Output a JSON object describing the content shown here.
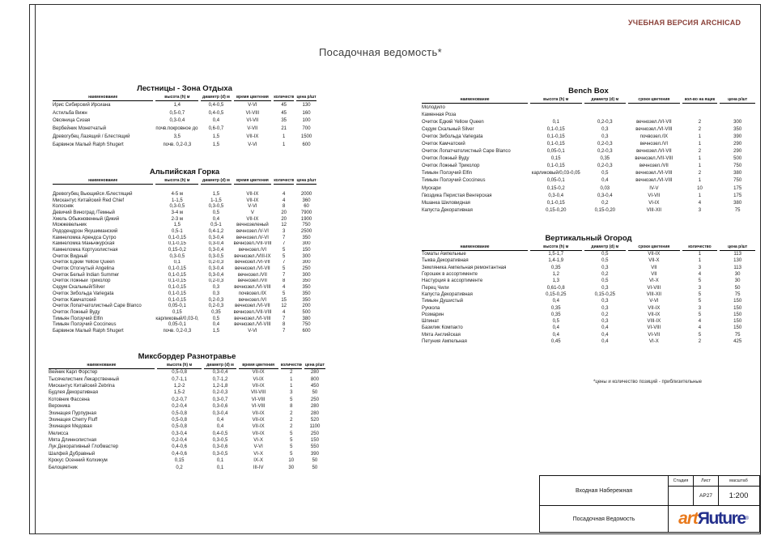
{
  "sheet": {
    "title": "Посадочная ведомость*",
    "watermark": "УЧЕБНАЯ ВЕРСИЯ ARCHICAD",
    "note": "*цены и количество позиций - приблизительные"
  },
  "tables": [
    {
      "id": "stairs",
      "title": "Лестницы - Зона Отдыха",
      "headers": [
        "наименование",
        "высота (h) м",
        "диаметр (d) м",
        "время цветения",
        "количество",
        "цена р/шт"
      ],
      "rows": [
        [
          "Ирис Сибирский Ирсиана",
          "1,4",
          "0,4-0,5",
          "V-VI",
          "45",
          "130"
        ],
        [
          "Астильба Вижн",
          "0,5-0,7",
          "0,4-0,5",
          "VI-VIII",
          "45",
          "160"
        ],
        [
          "Овсяница Сизая",
          "0,3-0,4",
          "0,4",
          "VI-VII",
          "35",
          "100"
        ],
        [
          "Вербейник Монетчатый",
          "почв.покровное до 1,2",
          "0,6-0,7",
          "V-VII",
          "21",
          "700"
        ],
        [
          "Древогубец Лазящий / Блестящий",
          "3,5",
          "1,5",
          "VII-IX",
          "1",
          "1500"
        ],
        [
          "Барвинок Малый Ralph Shugert",
          "почв. 0,2-0,3",
          "1,5",
          "V-VI",
          "1",
          "600"
        ]
      ]
    },
    {
      "id": "alpine",
      "title": "Альпийская Горка",
      "headers": [
        "наименование",
        "высота (h) м",
        "диаметр (d) м",
        "время цветения",
        "количество",
        "цена р/шт"
      ],
      "rows": [
        [
          "Древогубец Вьющийся /Блестящий",
          "4-5 м",
          "1,5",
          "VII-IX",
          "4",
          "2000"
        ],
        [
          "Мискантус Китайский Red Chief",
          "1-1,5",
          "1-1,5",
          "VII-IX",
          "4",
          "360"
        ],
        [
          "Колосняк",
          "0,3-0,5",
          "0,3-0,5",
          "V-VI",
          "8",
          "60"
        ],
        [
          "Девичий Виноград /Темный",
          "3-4 м",
          "0,5",
          "V",
          "20",
          "7900"
        ],
        [
          "Хмель Обыкновенный /Дикий",
          "2-3 м",
          "0,4",
          "VII-IX",
          "20",
          "1900"
        ],
        [
          "Можжевельник",
          "1,5",
          "0,5-1",
          "вечнозеленый",
          "12",
          "750"
        ],
        [
          "Рододендрон Якушиманский",
          "0,5-1",
          "0,4-1,2",
          "вечнозел./V-VI",
          "3",
          "2500"
        ],
        [
          "Камнеломка Арендса Сутро",
          "0,1-0,15",
          "0,3-0,4",
          "вечнозел./V-VI",
          "7",
          "350"
        ],
        [
          "Камнеломка Маньчжурская",
          "0,1-0,15",
          "0,3-0,4",
          "вечнозел./VII-VIII",
          "7",
          "300"
        ],
        [
          "Камнеломка Кортузолистная",
          "0,15-0,2",
          "0,3-0,4",
          "вечнозел./VI",
          "5",
          "150"
        ],
        [
          "Очиток Видный",
          "0,3-0,5",
          "0,3-0,5",
          "вечнозел./VIII-IX",
          "5",
          "300"
        ],
        [
          "Очиток Едкий Yellow Queen",
          "0,1",
          "0,2-0,3",
          "вечнозел./VI-VII",
          "7",
          "300"
        ],
        [
          "Очиток Отогнутый Angelina",
          "0,1-0,15",
          "0,3-0,4",
          "вечнозел./VI-VII",
          "5",
          "250"
        ],
        [
          "Очиток Белый Indian Summer",
          "0,1-0,15",
          "0,3-0,4",
          "вечнозел./VII",
          "7",
          "300"
        ],
        [
          "Очиток Ложный Триколор",
          "0,1-0,15",
          "0,2-0,3",
          "вечнозел./VII",
          "8",
          "350"
        ],
        [
          "Седум Скальный/Silver",
          "0,1-0,15",
          "0,3",
          "вечнозел./VI-VIII",
          "4",
          "350"
        ],
        [
          "Очиток Зибольда Variegata",
          "0,1-0,15",
          "0,3",
          "почвозел./IX",
          "5",
          "350"
        ],
        [
          "Очиток Камчатский",
          "0,1-0,15",
          "0,2-0,3",
          "вечнозел./VI",
          "15",
          "350"
        ],
        [
          "Очиток Лопатчатолистный Cape Blanco",
          "0,05-0,1",
          "0,2-0,3",
          "вечнозел./VI-VII",
          "12",
          "200"
        ],
        [
          "Очиток Ложный Вуду",
          "0,15",
          "0,35",
          "вечнозел./VII-VIII",
          "4",
          "500"
        ],
        [
          "Тимьян Ползучий Elfin",
          "карликовый/0,03-0,05",
          "0,5",
          "вечнозел./VI-VIII",
          "7",
          "380"
        ],
        [
          "Тимьян Ползучий Coccineus",
          "0,05-0,1",
          "0,4",
          "вечнозел./VI-VIII",
          "8",
          "750"
        ],
        [
          "Барвинок Малый Ralph Shugert",
          "почв. 0,2-0,3",
          "1,5",
          "V-VI",
          "7",
          "600"
        ]
      ]
    },
    {
      "id": "mixborder",
      "title": "Миксбордер Разнотравье",
      "headers": [
        "наименование",
        "высота (h) м",
        "диаметр (d) м",
        "время цветения",
        "количество",
        "цена р/шт"
      ],
      "rows": [
        [
          "Вейник Карл Форстер",
          "0,5-0,8",
          "0,3-0,4",
          "VII-IX",
          "2",
          "280"
        ],
        [
          "Тысячелистник Лекарственный",
          "0,7-1,1",
          "0,7-1,2",
          "VI-IX",
          "1",
          "800"
        ],
        [
          "Мискантус Китайский Zebrina",
          "1,2-2",
          "1,2-1,8",
          "VII-IX",
          "1",
          "450"
        ],
        [
          "Будлея Декоративная",
          "1,5-2",
          "0,2-0,3",
          "VII-VIII",
          "3",
          "50"
        ],
        [
          "Котовник Фассена",
          "0,2-0,7",
          "0,3-0,7",
          "VI-VIII",
          "5",
          "250"
        ],
        [
          "Вероника",
          "0,2-0,4",
          "0,3-0,6",
          "VI-VIII",
          "8",
          "280"
        ],
        [
          "Эхинацея Пурпурная",
          "0,5-0,8",
          "0,3-0,4",
          "VII-IX",
          "2",
          "280"
        ],
        [
          "Эхинацея Cherry Fluff",
          "0,5-0,8",
          "0,4",
          "VII-IX",
          "2",
          "520"
        ],
        [
          "Эхинацея Медовая",
          "0,5-0,8",
          "0,4",
          "VII-IX",
          "2",
          "1100"
        ],
        [
          "Мелисса",
          "0,3-0,4",
          "0,4-0,5",
          "VII-IX",
          "5",
          "250"
        ],
        [
          "Мята Длиннолистная",
          "0,2-0,4",
          "0,3-0,5",
          "VI-X",
          "5",
          "150"
        ],
        [
          "Лук Декоративный Глобмастер",
          "0,4-0,6",
          "0,3-0,6",
          "V-VI",
          "5",
          "550"
        ],
        [
          "Шалфей Дубравный",
          "0,4-0,6",
          "0,3-0,5",
          "VI-X",
          "5",
          "390"
        ],
        [
          "Крокус Осенний Колхикум",
          "0,15",
          "0,1",
          "IX-X",
          "10",
          "50"
        ],
        [
          "Белоцветник",
          "0,2",
          "0,1",
          "III-IV",
          "30",
          "50"
        ]
      ]
    },
    {
      "id": "benchbox",
      "title": "Bench Box",
      "headers": [
        "наименование",
        "высота (h) м",
        "диаметр (d) м",
        "сроки цветения",
        "кол-во на ящик",
        "цена р/шт"
      ],
      "rows": [
        [
          "Молодило",
          "",
          "",
          "",
          "",
          ""
        ],
        [
          "Каменная Роза",
          "",
          "",
          "",
          "",
          ""
        ],
        [
          "Очиток Едкий Yellow Queen",
          "0,1",
          "0,2-0,3",
          "вечнозел./VI-VII",
          "2",
          "300"
        ],
        [
          "Седум Скальный Silver",
          "0,1-0,15",
          "0,3",
          "вечнозел./VI-VIII",
          "2",
          "350"
        ],
        [
          "Очиток Зибольда Variegata",
          "0,1-0,15",
          "0,3",
          "почвозел./IX",
          "1",
          "390"
        ],
        [
          "Очиток Камчатский",
          "0,1-0,15",
          "0,2-0,3",
          "вечнозел./VI",
          "1",
          "290"
        ],
        [
          "Очиток Лопатчатолистный Cape Blanco",
          "0,05-0,1",
          "0,2-0,3",
          "вечнозел./VI-VII",
          "2",
          "290"
        ],
        [
          "Очиток Ложный Вуду",
          "0,15",
          "0,35",
          "вечнозел./VII-VIII",
          "1",
          "500"
        ],
        [
          "Очиток Ложный Триколор",
          "0,1-0,15",
          "0,2-0,3",
          "вечнозел./VII",
          "1",
          "750"
        ],
        [
          "Тимьян Ползучий Elfin",
          "карликовый/0,03-0,05",
          "0,5",
          "вечнозел./VI-VIII",
          "2",
          "380"
        ],
        [
          "Тимьян Ползучий Coccineus",
          "0,05-0,1",
          "0,4",
          "вечнозел./VI-VIII",
          "1",
          "750"
        ],
        [
          "Мускари",
          "0,15-0,2",
          "0,03",
          "IV-V",
          "10",
          "175"
        ],
        [
          "Гвоздика Перистая Венгерская",
          "0,3-0,4",
          "0,3-0,4",
          "VI-VII",
          "1",
          "175"
        ],
        [
          "Мшанка Шиловидная",
          "0,1-0,15",
          "0,2",
          "VI-IX",
          "4",
          "380"
        ],
        [
          "Капуста Декоративная",
          "0,15-0,20",
          "0,15-0,20",
          "VIII-XII",
          "3",
          "75"
        ]
      ]
    },
    {
      "id": "vertical",
      "title": "Вертикальный Огород",
      "headers": [
        "наименование",
        "высота (h) м",
        "диаметр (d) м",
        "сроки цветения",
        "количество",
        "цена р/шт"
      ],
      "rows": [
        [
          "Томаты Ампельные",
          "1,5-1,7",
          "0,5",
          "VII-IX",
          "1",
          "113"
        ],
        [
          "Тыква Декоративная",
          "1,4-1,9",
          "0,5",
          "VII-X",
          "1",
          "130"
        ],
        [
          "Земляника Ампельная ремонтантная",
          "0,35",
          "0,3",
          "VII",
          "3",
          "113"
        ],
        [
          "Горошек в ассортименте",
          "1,2",
          "0,2",
          "VII",
          "4",
          "30"
        ],
        [
          "Настурция в ассортименте",
          "1,3",
          "0,5",
          "VI-X",
          "5",
          "30"
        ],
        [
          "Перец Чили",
          "0,61-0,8",
          "0,3",
          "VI-VIII",
          "3",
          "50"
        ],
        [
          "Капуста Декоративная",
          "0,15-0,25",
          "0,15-0,25",
          "VIII-XII",
          "5",
          "75"
        ],
        [
          "Тимьян Душистый",
          "0,4",
          "0,3",
          "V-VI",
          "5",
          "150"
        ],
        [
          "Руккола",
          "0,35",
          "0,3",
          "VII-IX",
          "3",
          "150"
        ],
        [
          "Розмарин",
          "0,35",
          "0,2",
          "VII-IX",
          "5",
          "150"
        ],
        [
          "Шпинат",
          "0,5",
          "0,3",
          "VIII-IX",
          "4",
          "150"
        ],
        [
          "Базилик Компакто",
          "0,4",
          "0,4",
          "VI-VIII",
          "4",
          "150"
        ],
        [
          "Мята Английская",
          "0,4",
          "0,4",
          "VI-VII",
          "5",
          "75"
        ],
        [
          "Петуния Ампельная",
          "0,45",
          "0,4",
          "VI-X",
          "2",
          "425"
        ]
      ]
    }
  ],
  "title_block": {
    "project": "Входная Набережная",
    "sheet_name": "Посадочная Ведомость",
    "stage_label": "Стадия",
    "stage_value": "",
    "list_label": "Лист",
    "list_value": "АР27",
    "scale_label": "масштаб",
    "scale_value": "1:200",
    "logo_art": "art",
    "logo_future": "Яuture",
    "logo_reg": "®"
  }
}
